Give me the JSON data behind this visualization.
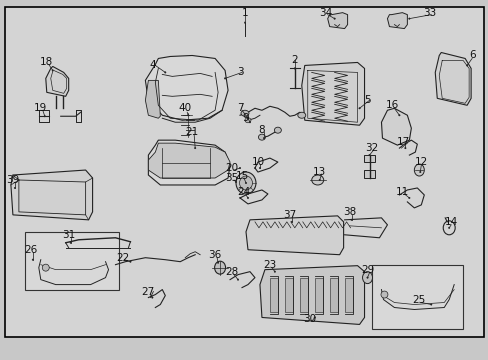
{
  "fig_width": 4.89,
  "fig_height": 3.6,
  "dpi": 100,
  "outer_bg": "#c8c8c8",
  "inner_bg": "#d4d4d4",
  "border_color": "#000000",
  "lc": "#222222",
  "lw": 0.8,
  "font_size": 7.5
}
